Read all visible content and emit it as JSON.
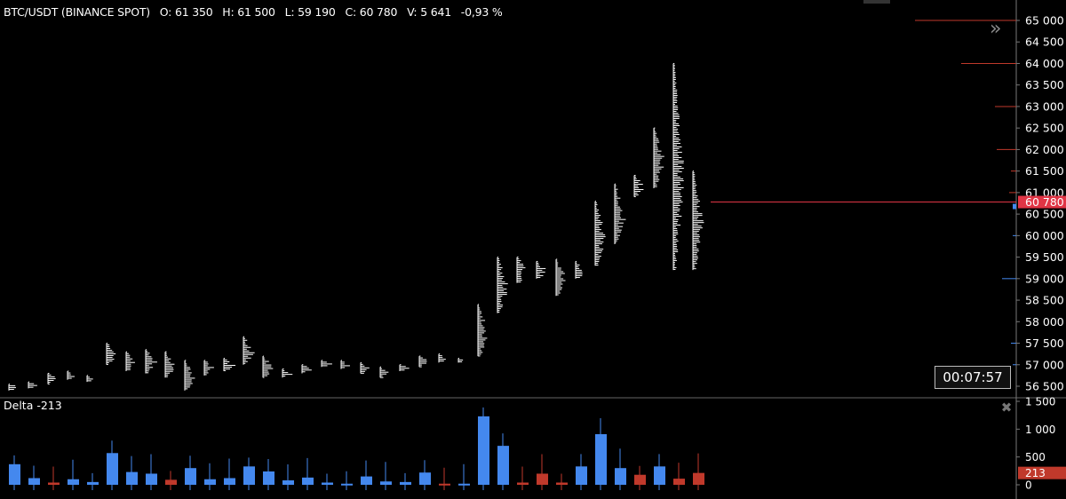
{
  "header": {
    "symbol": "BTC/USDT (BINANCE SPOT)",
    "open": "O: 61 350",
    "high": "H: 61 500",
    "low": "L: 59 190",
    "close": "C: 60 780",
    "volume": "V: 5 641",
    "change": "-0,93 %"
  },
  "timer": "00:07:57",
  "last_price_label": "60 780",
  "delta_label": "Delta -213",
  "delta_value_label": "213",
  "icons": {
    "expand": "double-chevron-right-icon",
    "close": "close-x-icon"
  },
  "colors": {
    "up": "#4488ee",
    "down": "#c0392b",
    "last_price": "#e03545",
    "profile": "#ffffff"
  },
  "chart_data": [
    {
      "type": "bar",
      "title": "BTC/USDT (BINANCE SPOT)",
      "subtype": "volume profile per bar",
      "y_axis": {
        "ticks": [
          56500,
          57000,
          57500,
          58000,
          58500,
          59000,
          59500,
          60000,
          60500,
          61000,
          61500,
          62000,
          62500,
          63000,
          63500,
          64000,
          64500,
          65000
        ],
        "tick_labels": [
          "56 500",
          "57 000",
          "57 500",
          "58 000",
          "58 500",
          "59 000",
          "59 500",
          "60 000",
          "60 500",
          "61 000",
          "61 500",
          "62 000",
          "62 500",
          "63 000",
          "63 500",
          "64 000",
          "64 500",
          "65 000"
        ],
        "ylim": [
          56400,
          65200
        ]
      },
      "last_price": 60780,
      "bars_low_high": [
        [
          56400,
          56550
        ],
        [
          56450,
          56600
        ],
        [
          56550,
          56800
        ],
        [
          56650,
          56850
        ],
        [
          56600,
          56750
        ],
        [
          57000,
          57500
        ],
        [
          56850,
          57300
        ],
        [
          56800,
          57350
        ],
        [
          56700,
          57300
        ],
        [
          56400,
          57100
        ],
        [
          56750,
          57100
        ],
        [
          56850,
          57150
        ],
        [
          57000,
          57650
        ],
        [
          56700,
          57200
        ],
        [
          56700,
          56900
        ],
        [
          56800,
          57000
        ],
        [
          56950,
          57100
        ],
        [
          56900,
          57100
        ],
        [
          56800,
          57050
        ],
        [
          56700,
          56950
        ],
        [
          56850,
          57000
        ],
        [
          56950,
          57200
        ],
        [
          57050,
          57250
        ],
        [
          57050,
          57150
        ],
        [
          57200,
          58400
        ],
        [
          58200,
          59500
        ],
        [
          58900,
          59500
        ],
        [
          59000,
          59400
        ],
        [
          58600,
          59450
        ],
        [
          59000,
          59400
        ],
        [
          59300,
          60800
        ],
        [
          59800,
          61200
        ],
        [
          60900,
          61400
        ],
        [
          61100,
          62500
        ],
        [
          59200,
          64000
        ],
        [
          59200,
          61500
        ]
      ]
    },
    {
      "type": "bar",
      "title": "Delta -213",
      "y_axis": {
        "ticks": [
          0,
          500,
          1000,
          1500
        ],
        "tick_labels": [
          "0",
          "500",
          "1 000",
          "1 500"
        ],
        "ylim": [
          -100,
          1550
        ]
      },
      "values": [
        370,
        120,
        -40,
        100,
        50,
        570,
        230,
        200,
        -90,
        300,
        100,
        120,
        330,
        240,
        80,
        130,
        40,
        20,
        150,
        60,
        50,
        220,
        -20,
        20,
        1230,
        700,
        -40,
        -200,
        -40,
        330,
        910,
        300,
        -180,
        330,
        -110,
        -213
      ]
    }
  ]
}
